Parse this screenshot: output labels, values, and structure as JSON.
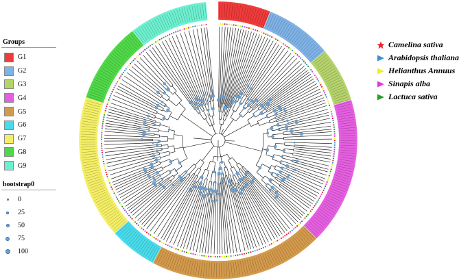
{
  "groups_legend": {
    "title": "Groups",
    "items": [
      {
        "label": "G1",
        "color": "#ef3b3b"
      },
      {
        "label": "G2",
        "color": "#7fb2e5"
      },
      {
        "label": "G3",
        "color": "#b5d36b"
      },
      {
        "label": "G4",
        "color": "#e55fe0"
      },
      {
        "label": "G5",
        "color": "#d39a4c"
      },
      {
        "label": "G6",
        "color": "#49dbea"
      },
      {
        "label": "G7",
        "color": "#f4ee66"
      },
      {
        "label": "G8",
        "color": "#51d849"
      },
      {
        "label": "G9",
        "color": "#6df0cf"
      }
    ]
  },
  "bootstrap_legend": {
    "title": "bootstrap0",
    "items": [
      {
        "label": "0",
        "value": 0
      },
      {
        "label": "25",
        "value": 25
      },
      {
        "label": "50",
        "value": 50
      },
      {
        "label": "75",
        "value": 75
      },
      {
        "label": "100",
        "value": 100
      }
    ],
    "dot_color": "#6fa3d2"
  },
  "species_legend": [
    {
      "label": "Camelina sativa",
      "shape": "star",
      "color": "#e8232a"
    },
    {
      "label": "Arabidopsis thaliana",
      "shape": "triangle",
      "color": "#3f8fd8"
    },
    {
      "label": "Helianthus Annuus",
      "shape": "triangle",
      "color": "#f2ef1a"
    },
    {
      "label": "Sinapis alba",
      "shape": "triangle",
      "color": "#e536d9"
    },
    {
      "label": "Lactuca sativa",
      "shape": "triangle",
      "color": "#2a9d2a"
    }
  ],
  "tree": {
    "clade_arcs": [
      {
        "group": "G1",
        "start_deg": 0,
        "end_deg": 22
      },
      {
        "group": "G2",
        "start_deg": 22,
        "end_deg": 50
      },
      {
        "group": "G3",
        "start_deg": 50,
        "end_deg": 73
      },
      {
        "group": "G4",
        "start_deg": 73,
        "end_deg": 135
      },
      {
        "group": "G5",
        "start_deg": 135,
        "end_deg": 208
      },
      {
        "group": "G6",
        "start_deg": 208,
        "end_deg": 228
      },
      {
        "group": "G7",
        "start_deg": 228,
        "end_deg": 288
      },
      {
        "group": "G8",
        "start_deg": 288,
        "end_deg": 322
      },
      {
        "group": "G9",
        "start_deg": 322,
        "end_deg": 355
      }
    ]
  }
}
